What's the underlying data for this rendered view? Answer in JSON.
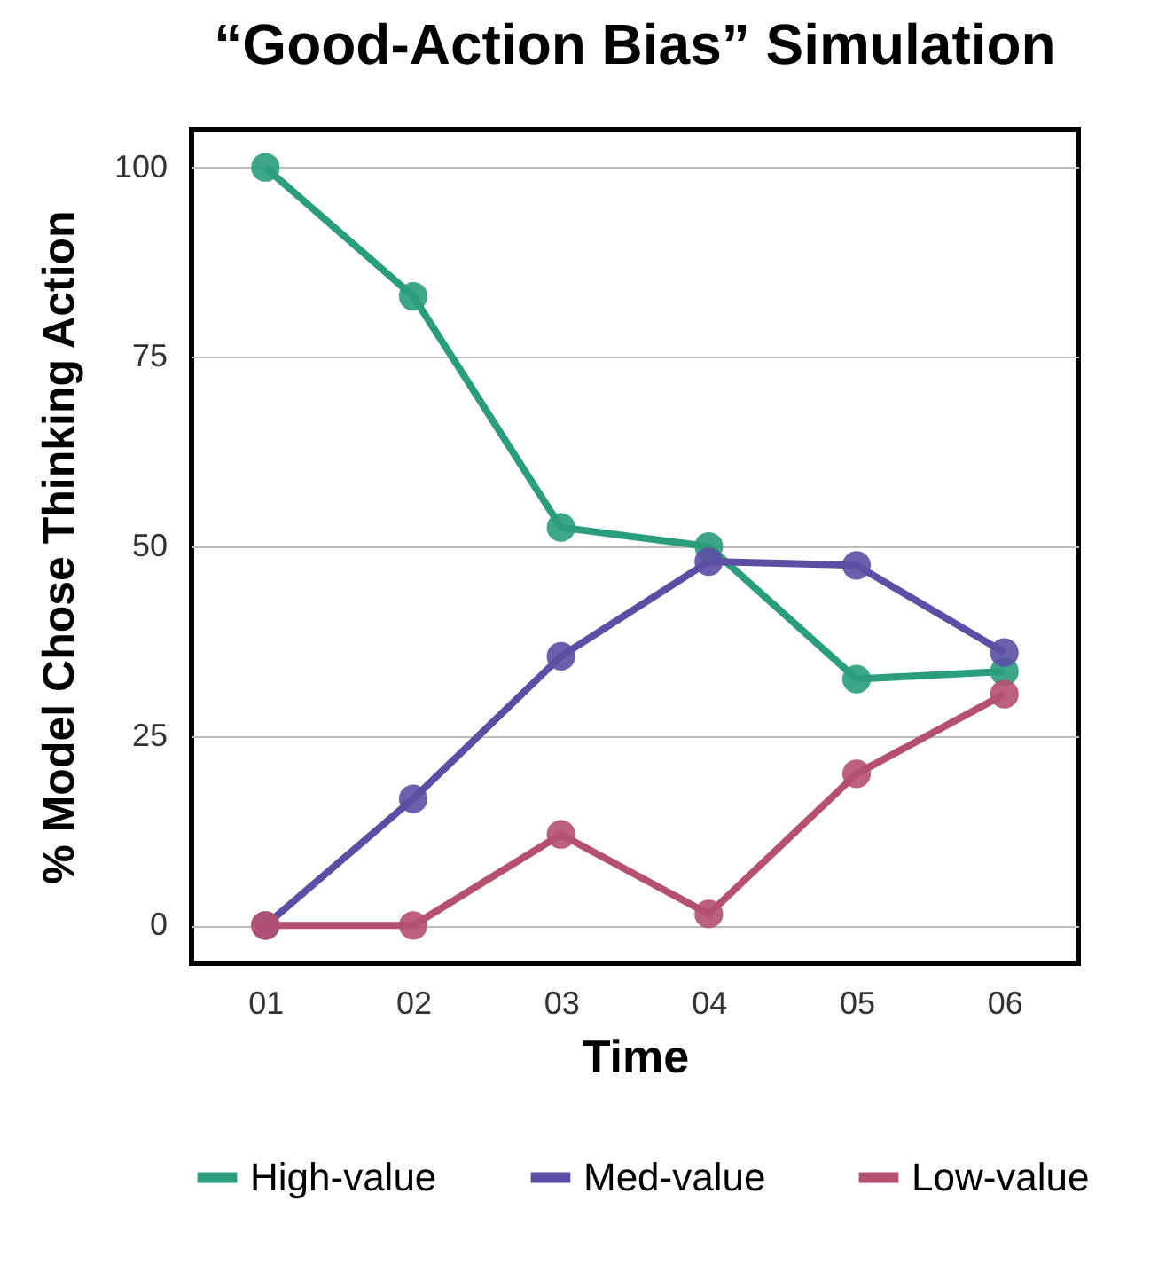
{
  "chart_data": {
    "type": "line",
    "title": "“Good-Action Bias” Simulation",
    "xlabel": "Time",
    "ylabel": "% Model Chose Thinking Action",
    "categories": [
      "01",
      "02",
      "03",
      "04",
      "05",
      "06"
    ],
    "series": [
      {
        "name": "High-value",
        "color": "#2a9d7c",
        "values": [
          100,
          83,
          52.5,
          50,
          32.5,
          33.5
        ]
      },
      {
        "name": "Med-value",
        "color": "#5b4fa5",
        "values": [
          0,
          16.7,
          35.5,
          48,
          47.5,
          36
        ]
      },
      {
        "name": "Low-value",
        "color": "#b5506f",
        "values": [
          0,
          0,
          12,
          1.5,
          20,
          30.5
        ]
      }
    ],
    "ylim": [
      -5,
      105
    ],
    "yticks": [
      0,
      25,
      50,
      75,
      100
    ],
    "grid": "y",
    "legend": "bottom",
    "marker": "circle",
    "line_style": "solid"
  }
}
